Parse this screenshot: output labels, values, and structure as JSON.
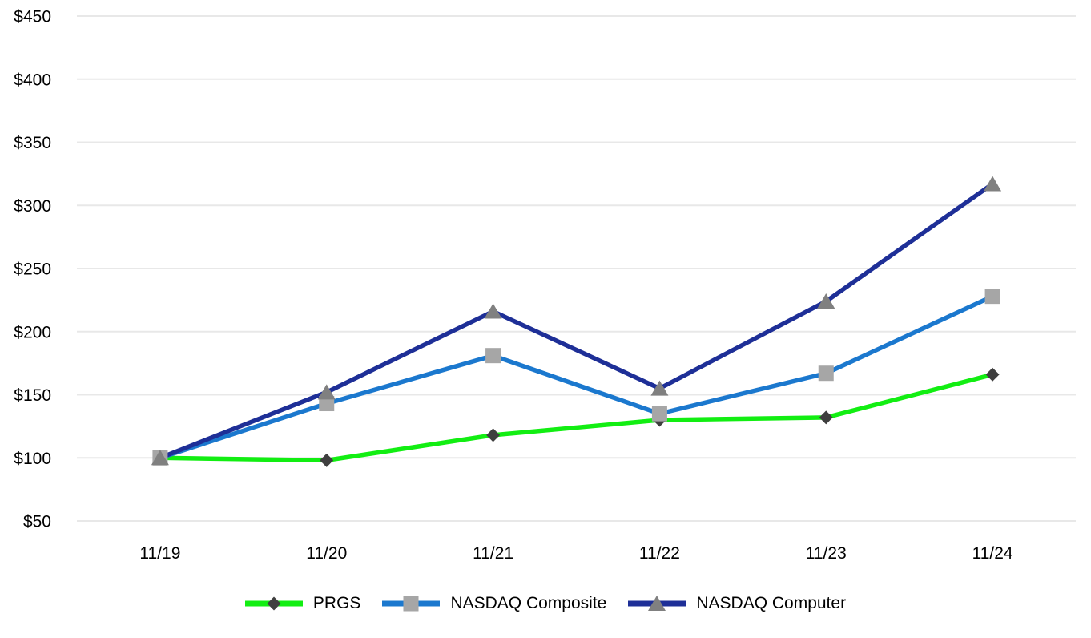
{
  "chart_data": {
    "type": "line",
    "title": "",
    "xlabel": "",
    "ylabel": "",
    "categories": [
      "11/19",
      "11/20",
      "11/21",
      "11/22",
      "11/23",
      "11/24"
    ],
    "series": [
      {
        "name": "PRGS",
        "color": "#12EE12",
        "marker": "diamond",
        "marker_color": "#3F3F3F",
        "values": [
          100,
          98,
          118,
          130,
          132,
          166
        ]
      },
      {
        "name": "NASDAQ Composite",
        "color": "#1B78CE",
        "marker": "square",
        "marker_color": "#A6A6A6",
        "values": [
          100,
          143,
          181,
          135,
          167,
          228
        ]
      },
      {
        "name": "NASDAQ Computer",
        "color": "#1E2F97",
        "marker": "triangle",
        "marker_color": "#808080",
        "values": [
          100,
          152,
          216,
          155,
          224,
          317
        ]
      }
    ],
    "ylim": [
      50,
      450
    ],
    "yticks": [
      {
        "value": 450,
        "label": "$450"
      },
      {
        "value": 400,
        "label": "$400"
      },
      {
        "value": 350,
        "label": "$350"
      },
      {
        "value": 300,
        "label": "$300"
      },
      {
        "value": 250,
        "label": "$250"
      },
      {
        "value": 200,
        "label": "$200"
      },
      {
        "value": 150,
        "label": "$150"
      },
      {
        "value": 100,
        "label": "$100"
      },
      {
        "value": 50,
        "label": "$50"
      }
    ],
    "grid": true,
    "legend_position": "bottom"
  },
  "colors": {
    "background": "#FFFFFF",
    "grid": "#E8E8E8",
    "axis_text": "#000000"
  }
}
